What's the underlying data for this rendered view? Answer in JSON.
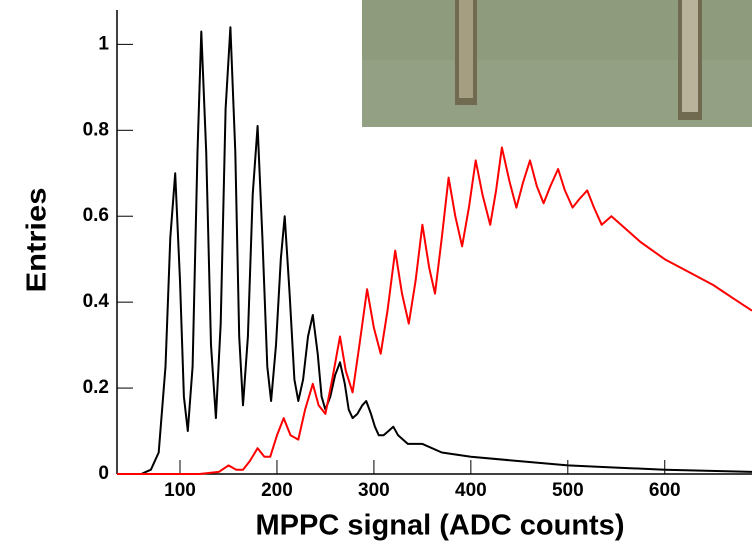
{
  "chart_data": {
    "type": "line",
    "xlabel": "MPPC signal (ADC counts)",
    "ylabel": "Entries",
    "xlim": [
      35,
      690
    ],
    "ylim": [
      0,
      1.08
    ],
    "xticks": [
      100,
      200,
      300,
      400,
      500,
      600
    ],
    "yticks": [
      0,
      0.2,
      0.4,
      0.6,
      0.8,
      1
    ],
    "series": [
      {
        "color": "#000000",
        "x": [
          35,
          60,
          70,
          78,
          85,
          90,
          95,
          100,
          104,
          108,
          113,
          118,
          122,
          127,
          132,
          137,
          142,
          147,
          152,
          157,
          161,
          165,
          170,
          175,
          180,
          185,
          190,
          194,
          199,
          204,
          208,
          213,
          218,
          222,
          227,
          232,
          237,
          242,
          246,
          250,
          255,
          260,
          265,
          270,
          274,
          278,
          283,
          288,
          292,
          297,
          301,
          305,
          310,
          315,
          320,
          325,
          335,
          350,
          370,
          400,
          450,
          500,
          550,
          600,
          690
        ],
        "values": [
          0,
          0,
          0.01,
          0.05,
          0.25,
          0.55,
          0.7,
          0.45,
          0.18,
          0.1,
          0.25,
          0.75,
          1.03,
          0.75,
          0.3,
          0.13,
          0.35,
          0.85,
          1.04,
          0.75,
          0.32,
          0.16,
          0.32,
          0.65,
          0.81,
          0.55,
          0.25,
          0.17,
          0.3,
          0.5,
          0.6,
          0.42,
          0.22,
          0.17,
          0.22,
          0.32,
          0.37,
          0.28,
          0.18,
          0.15,
          0.18,
          0.23,
          0.26,
          0.21,
          0.15,
          0.13,
          0.14,
          0.16,
          0.17,
          0.14,
          0.11,
          0.09,
          0.09,
          0.1,
          0.11,
          0.09,
          0.07,
          0.07,
          0.05,
          0.04,
          0.03,
          0.02,
          0.015,
          0.01,
          0.005
        ]
      },
      {
        "color": "#ff0000",
        "x": [
          35,
          120,
          140,
          150,
          158,
          165,
          172,
          180,
          187,
          193,
          200,
          207,
          214,
          222,
          229,
          237,
          243,
          250,
          257,
          265,
          271,
          278,
          285,
          293,
          300,
          307,
          314,
          322,
          329,
          336,
          343,
          350,
          357,
          363,
          370,
          377,
          384,
          391,
          398,
          405,
          412,
          420,
          426,
          432,
          440,
          447,
          454,
          461,
          468,
          475,
          482,
          490,
          497,
          505,
          512,
          520,
          527,
          535,
          545,
          560,
          575,
          600,
          625,
          650,
          670,
          690
        ],
        "values": [
          0,
          0,
          0.005,
          0.02,
          0.01,
          0.01,
          0.03,
          0.06,
          0.04,
          0.04,
          0.09,
          0.13,
          0.09,
          0.08,
          0.15,
          0.21,
          0.16,
          0.14,
          0.22,
          0.32,
          0.24,
          0.19,
          0.3,
          0.43,
          0.34,
          0.28,
          0.38,
          0.52,
          0.42,
          0.35,
          0.45,
          0.58,
          0.48,
          0.42,
          0.55,
          0.69,
          0.6,
          0.53,
          0.62,
          0.73,
          0.65,
          0.58,
          0.66,
          0.76,
          0.68,
          0.62,
          0.68,
          0.73,
          0.67,
          0.63,
          0.67,
          0.71,
          0.66,
          0.62,
          0.64,
          0.66,
          0.62,
          0.58,
          0.6,
          0.57,
          0.54,
          0.5,
          0.47,
          0.44,
          0.41,
          0.38
        ]
      }
    ]
  }
}
